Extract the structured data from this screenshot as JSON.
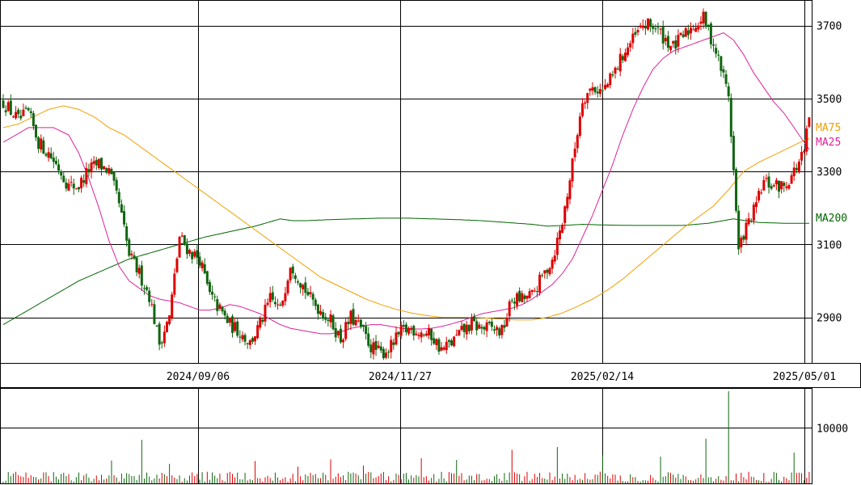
{
  "chart_data": [
    {
      "type": "candlestick",
      "title": "",
      "y_ticks": [
        2900,
        3100,
        3300,
        3500,
        3700
      ],
      "x_tick_labels": [
        "2024/09/06",
        "2024/11/27",
        "2025/02/14",
        "2025/05/01"
      ],
      "ylim": [
        2775,
        3770
      ],
      "grid": true,
      "colors": {
        "up": "#dd0000",
        "down": "#116611",
        "ma75": "#f0a000",
        "ma25": "#dd2299",
        "ma200": "#006600",
        "grid": "#000000"
      },
      "legend": [
        {
          "name": "MA75",
          "color": "#f0a000"
        },
        {
          "name": "MA25",
          "color": "#dd2299"
        },
        {
          "name": "MA200",
          "color": "#006600"
        }
      ],
      "price_anchors": [
        [
          0,
          3490
        ],
        [
          6,
          3440
        ],
        [
          10,
          3460
        ],
        [
          14,
          3380
        ],
        [
          18,
          3350
        ],
        [
          22,
          3310
        ],
        [
          26,
          3260
        ],
        [
          30,
          3260
        ],
        [
          34,
          3305
        ],
        [
          38,
          3320
        ],
        [
          42,
          3300
        ],
        [
          46,
          3210
        ],
        [
          50,
          3070
        ],
        [
          54,
          3020
        ],
        [
          58,
          2960
        ],
        [
          62,
          2830
        ],
        [
          66,
          2900
        ],
        [
          70,
          3120
        ],
        [
          74,
          3080
        ],
        [
          78,
          3060
        ],
        [
          82,
          2960
        ],
        [
          86,
          2920
        ],
        [
          90,
          2880
        ],
        [
          94,
          2860
        ],
        [
          98,
          2830
        ],
        [
          102,
          2880
        ],
        [
          106,
          2950
        ],
        [
          110,
          2920
        ],
        [
          114,
          3050
        ],
        [
          118,
          3000
        ],
        [
          122,
          2950
        ],
        [
          126,
          2920
        ],
        [
          130,
          2890
        ],
        [
          134,
          2840
        ],
        [
          138,
          2900
        ],
        [
          142,
          2870
        ],
        [
          146,
          2820
        ],
        [
          150,
          2800
        ],
        [
          154,
          2820
        ],
        [
          158,
          2860
        ],
        [
          162,
          2870
        ],
        [
          166,
          2860
        ],
        [
          170,
          2850
        ],
        [
          174,
          2810
        ],
        [
          178,
          2830
        ],
        [
          182,
          2860
        ],
        [
          186,
          2880
        ],
        [
          190,
          2870
        ],
        [
          194,
          2870
        ],
        [
          198,
          2860
        ],
        [
          202,
          2950
        ],
        [
          206,
          2950
        ],
        [
          210,
          2960
        ],
        [
          214,
          3010
        ],
        [
          218,
          3060
        ],
        [
          222,
          3160
        ],
        [
          226,
          3320
        ],
        [
          230,
          3500
        ],
        [
          234,
          3530
        ],
        [
          238,
          3520
        ],
        [
          242,
          3560
        ],
        [
          246,
          3620
        ],
        [
          250,
          3660
        ],
        [
          254,
          3700
        ],
        [
          258,
          3700
        ],
        [
          262,
          3670
        ],
        [
          266,
          3640
        ],
        [
          270,
          3670
        ],
        [
          274,
          3700
        ],
        [
          278,
          3720
        ],
        [
          282,
          3650
        ],
        [
          286,
          3560
        ],
        [
          288,
          3510
        ],
        [
          290,
          3300
        ],
        [
          292,
          3080
        ],
        [
          294,
          3130
        ],
        [
          298,
          3190
        ],
        [
          302,
          3270
        ],
        [
          306,
          3260
        ],
        [
          310,
          3260
        ],
        [
          314,
          3300
        ],
        [
          318,
          3350
        ],
        [
          320,
          3450
        ]
      ],
      "ma25_anchors": [
        [
          0,
          3380
        ],
        [
          10,
          3420
        ],
        [
          20,
          3420
        ],
        [
          26,
          3400
        ],
        [
          30,
          3350
        ],
        [
          34,
          3280
        ],
        [
          38,
          3200
        ],
        [
          42,
          3110
        ],
        [
          46,
          3040
        ],
        [
          50,
          3000
        ],
        [
          54,
          2980
        ],
        [
          58,
          2960
        ],
        [
          62,
          2950
        ],
        [
          66,
          2945
        ],
        [
          70,
          2940
        ],
        [
          74,
          2930
        ],
        [
          78,
          2920
        ],
        [
          82,
          2920
        ],
        [
          86,
          2925
        ],
        [
          90,
          2935
        ],
        [
          94,
          2930
        ],
        [
          98,
          2920
        ],
        [
          102,
          2910
        ],
        [
          106,
          2895
        ],
        [
          110,
          2880
        ],
        [
          114,
          2870
        ],
        [
          118,
          2865
        ],
        [
          122,
          2860
        ],
        [
          126,
          2855
        ],
        [
          130,
          2855
        ],
        [
          134,
          2860
        ],
        [
          138,
          2870
        ],
        [
          142,
          2875
        ],
        [
          146,
          2880
        ],
        [
          150,
          2880
        ],
        [
          154,
          2875
        ],
        [
          158,
          2870
        ],
        [
          162,
          2868
        ],
        [
          166,
          2868
        ],
        [
          170,
          2870
        ],
        [
          174,
          2875
        ],
        [
          178,
          2882
        ],
        [
          182,
          2890
        ],
        [
          186,
          2900
        ],
        [
          190,
          2910
        ],
        [
          194,
          2915
        ],
        [
          198,
          2920
        ],
        [
          202,
          2925
        ],
        [
          206,
          2935
        ],
        [
          210,
          2950
        ],
        [
          214,
          2970
        ],
        [
          218,
          2990
        ],
        [
          222,
          3020
        ],
        [
          226,
          3060
        ],
        [
          230,
          3120
        ],
        [
          234,
          3180
        ],
        [
          238,
          3250
        ],
        [
          242,
          3320
        ],
        [
          246,
          3400
        ],
        [
          250,
          3470
        ],
        [
          254,
          3530
        ],
        [
          258,
          3580
        ],
        [
          262,
          3610
        ],
        [
          266,
          3630
        ],
        [
          270,
          3640
        ],
        [
          274,
          3650
        ],
        [
          278,
          3660
        ],
        [
          282,
          3670
        ],
        [
          286,
          3680
        ],
        [
          290,
          3660
        ],
        [
          294,
          3620
        ],
        [
          298,
          3570
        ],
        [
          302,
          3530
        ],
        [
          306,
          3490
        ],
        [
          310,
          3460
        ],
        [
          314,
          3420
        ],
        [
          318,
          3380
        ],
        [
          320,
          3360
        ]
      ],
      "ma75_anchors": [
        [
          0,
          3420
        ],
        [
          6,
          3430
        ],
        [
          12,
          3450
        ],
        [
          18,
          3470
        ],
        [
          24,
          3480
        ],
        [
          30,
          3470
        ],
        [
          36,
          3450
        ],
        [
          42,
          3420
        ],
        [
          48,
          3400
        ],
        [
          54,
          3370
        ],
        [
          60,
          3340
        ],
        [
          66,
          3310
        ],
        [
          72,
          3280
        ],
        [
          78,
          3250
        ],
        [
          84,
          3220
        ],
        [
          90,
          3190
        ],
        [
          96,
          3160
        ],
        [
          102,
          3130
        ],
        [
          108,
          3100
        ],
        [
          114,
          3070
        ],
        [
          120,
          3040
        ],
        [
          126,
          3010
        ],
        [
          132,
          2990
        ],
        [
          138,
          2970
        ],
        [
          144,
          2950
        ],
        [
          150,
          2935
        ],
        [
          156,
          2922
        ],
        [
          162,
          2912
        ],
        [
          168,
          2905
        ],
        [
          174,
          2900
        ],
        [
          180,
          2900
        ],
        [
          186,
          2900
        ],
        [
          192,
          2898
        ],
        [
          198,
          2895
        ],
        [
          204,
          2893
        ],
        [
          210,
          2893
        ],
        [
          216,
          2900
        ],
        [
          222,
          2912
        ],
        [
          228,
          2930
        ],
        [
          234,
          2950
        ],
        [
          240,
          2975
        ],
        [
          246,
          3005
        ],
        [
          252,
          3040
        ],
        [
          258,
          3075
        ],
        [
          264,
          3110
        ],
        [
          270,
          3145
        ],
        [
          276,
          3175
        ],
        [
          282,
          3205
        ],
        [
          288,
          3250
        ],
        [
          294,
          3300
        ],
        [
          300,
          3325
        ],
        [
          306,
          3345
        ],
        [
          312,
          3365
        ],
        [
          318,
          3385
        ],
        [
          320,
          3390
        ]
      ],
      "ma200_anchors": [
        [
          0,
          2880
        ],
        [
          10,
          2920
        ],
        [
          20,
          2960
        ],
        [
          30,
          3000
        ],
        [
          40,
          3030
        ],
        [
          50,
          3060
        ],
        [
          60,
          3080
        ],
        [
          70,
          3100
        ],
        [
          80,
          3120
        ],
        [
          90,
          3135
        ],
        [
          100,
          3150
        ],
        [
          110,
          3170
        ],
        [
          115,
          3165
        ],
        [
          120,
          3165
        ],
        [
          130,
          3168
        ],
        [
          140,
          3170
        ],
        [
          150,
          3172
        ],
        [
          160,
          3172
        ],
        [
          170,
          3170
        ],
        [
          180,
          3168
        ],
        [
          190,
          3165
        ],
        [
          200,
          3160
        ],
        [
          210,
          3155
        ],
        [
          216,
          3150
        ],
        [
          222,
          3152
        ],
        [
          230,
          3155
        ],
        [
          240,
          3153
        ],
        [
          250,
          3152
        ],
        [
          260,
          3152
        ],
        [
          270,
          3152
        ],
        [
          280,
          3158
        ],
        [
          290,
          3170
        ],
        [
          295,
          3165
        ],
        [
          300,
          3160
        ],
        [
          310,
          3158
        ],
        [
          320,
          3158
        ]
      ]
    },
    {
      "type": "bar",
      "title": "",
      "y_ticks": [
        10000
      ],
      "ylim": [
        0,
        16500
      ],
      "volume_spikes": [
        [
          55,
          7800
        ],
        [
          288,
          16500
        ],
        [
          279,
          8000
        ],
        [
          220,
          6500
        ],
        [
          202,
          6000
        ],
        [
          314,
          5500
        ],
        [
          238,
          5000
        ],
        [
          166,
          4500
        ],
        [
          180,
          4200
        ],
        [
          100,
          4000
        ],
        [
          130,
          4300
        ],
        [
          43,
          4100
        ],
        [
          261,
          4800
        ],
        [
          143,
          3200
        ],
        [
          117,
          3000
        ],
        [
          66,
          3500
        ]
      ]
    }
  ]
}
